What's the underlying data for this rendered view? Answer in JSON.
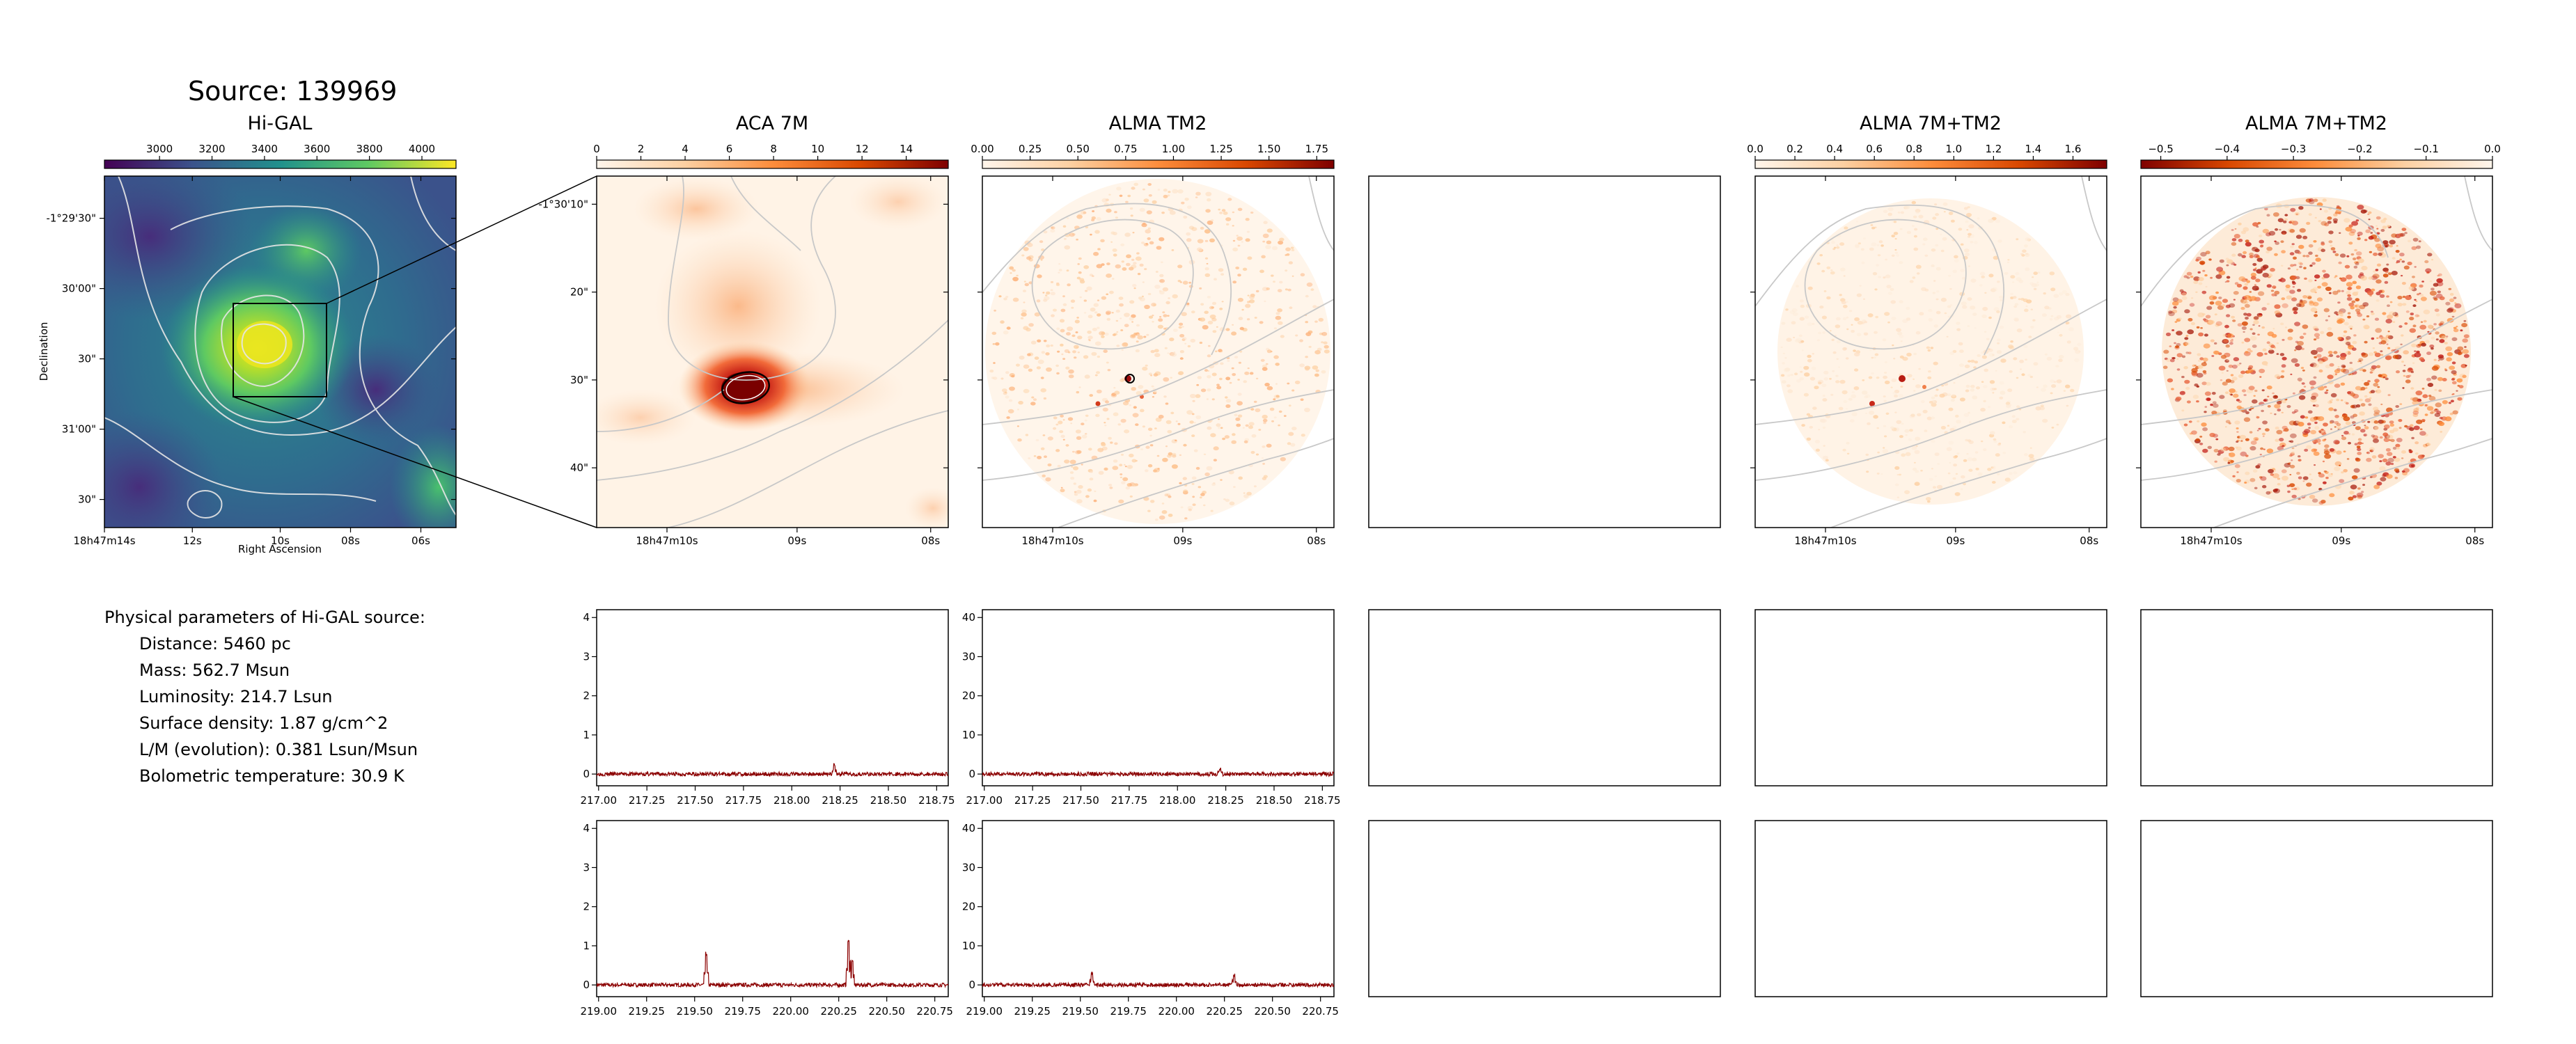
{
  "source_title": "Source: 139969",
  "params": {
    "heading": "Physical parameters of Hi-GAL source:",
    "lines": [
      "Distance: 5460 pc",
      "Mass: 562.7 Msun",
      "Luminosity: 214.7 Lsun",
      "Surface density: 1.87 g/cm^2",
      "L/M (evolution): 0.381 Lsun/Msun",
      "Bolometric temperature: 30.9 K"
    ]
  },
  "colors": {
    "viridis": [
      "#440154",
      "#3b528b",
      "#21918c",
      "#5ec962",
      "#fde725"
    ],
    "orrd": [
      "#fff5eb",
      "#fdd0a2",
      "#fd8d3c",
      "#d94801",
      "#7f0000"
    ],
    "orrd_reversed": [
      "#7f0000",
      "#d94801",
      "#fd8d3c",
      "#fdd0a2",
      "#fff5eb"
    ],
    "spectrum": "#8b0000",
    "contour_light": "#e6e6e6",
    "contour_gray": "#b4b4b4"
  },
  "chart_data": [
    {
      "type": "heatmap",
      "title": "Hi-GAL",
      "colormap": "viridis",
      "colorbar_ticks": [
        "3000",
        "3200",
        "3400",
        "3600",
        "3800",
        "4000"
      ],
      "colorbar_range": [
        2790,
        4130
      ],
      "xlabel": "Right Ascension",
      "ylabel": "Declination",
      "x_ticks": [
        "18h47m14s",
        "12s",
        "10s",
        "08s",
        "06s"
      ],
      "y_ticks": [
        "-1°29'30\"",
        "30'00\"",
        "30\"",
        "31'00\"",
        "30\""
      ]
    },
    {
      "type": "heatmap",
      "title": "ACA 7M",
      "colormap": "orrd",
      "colorbar_ticks": [
        "0",
        "2",
        "4",
        "6",
        "8",
        "10",
        "12",
        "14"
      ],
      "colorbar_range": [
        0,
        15.9
      ],
      "x_ticks": [
        "18h47m10s",
        "09s",
        "08s"
      ],
      "y_ticks": [
        "-1°30'10\"",
        "20\"",
        "30\"",
        "40\""
      ]
    },
    {
      "type": "heatmap",
      "title": "ALMA TM2",
      "colormap": "orrd",
      "colorbar_ticks": [
        "0.00",
        "0.25",
        "0.50",
        "0.75",
        "1.00",
        "1.25",
        "1.50",
        "1.75"
      ],
      "colorbar_range": [
        0,
        1.84
      ],
      "x_ticks": [
        "18h47m10s",
        "09s",
        "08s"
      ]
    },
    {
      "type": "heatmap",
      "title": "ALMA 7M+TM2",
      "colormap": "orrd",
      "colorbar_ticks": [
        "0.0",
        "0.2",
        "0.4",
        "0.6",
        "0.8",
        "1.0",
        "1.2",
        "1.4",
        "1.6"
      ],
      "colorbar_range": [
        0,
        1.77
      ],
      "x_ticks": [
        "18h47m10s",
        "09s",
        "08s"
      ]
    },
    {
      "type": "heatmap",
      "title": "ALMA 7M+TM2",
      "colormap": "orrd_reversed",
      "colorbar_ticks": [
        "−0.5",
        "−0.4",
        "−0.3",
        "−0.2",
        "−0.1",
        "0.0"
      ],
      "colorbar_range": [
        -0.53,
        0
      ],
      "x_ticks": [
        "18h47m10s",
        "09s",
        "08s"
      ]
    },
    {
      "type": "line",
      "x_ticks": [
        "217.00",
        "217.25",
        "217.50",
        "217.75",
        "218.00",
        "218.25",
        "218.50",
        "218.75"
      ],
      "xlim": [
        216.99,
        218.81
      ],
      "y_ticks": [
        "0",
        "1",
        "2",
        "3",
        "4"
      ],
      "ylim": [
        -0.3,
        4.2
      ],
      "peaks": [
        {
          "x": 218.22,
          "y": 0.25
        }
      ]
    },
    {
      "type": "line",
      "x_ticks": [
        "217.00",
        "217.25",
        "217.50",
        "217.75",
        "218.00",
        "218.25",
        "218.50",
        "218.75"
      ],
      "xlim": [
        216.99,
        218.81
      ],
      "y_ticks": [
        "0",
        "10",
        "20",
        "30",
        "40"
      ],
      "ylim": [
        -3,
        42
      ],
      "peaks": [
        {
          "x": 218.22,
          "y": 1.5
        }
      ]
    },
    {
      "type": "line",
      "x_ticks": [
        "219.00",
        "219.25",
        "219.50",
        "219.75",
        "220.00",
        "220.25",
        "220.50",
        "220.75"
      ],
      "xlim": [
        218.99,
        220.82
      ],
      "y_ticks": [
        "0",
        "1",
        "2",
        "3",
        "4"
      ],
      "ylim": [
        -0.3,
        4.2
      ],
      "peaks": [
        {
          "x": 219.56,
          "y": 0.8
        },
        {
          "x": 220.3,
          "y": 1.1
        },
        {
          "x": 220.32,
          "y": 0.6
        }
      ]
    },
    {
      "type": "line",
      "x_ticks": [
        "219.00",
        "219.25",
        "219.50",
        "219.75",
        "220.00",
        "220.25",
        "220.50",
        "220.75"
      ],
      "xlim": [
        218.99,
        220.82
      ],
      "y_ticks": [
        "0",
        "10",
        "20",
        "30",
        "40"
      ],
      "ylim": [
        -3,
        42
      ],
      "peaks": [
        {
          "x": 219.56,
          "y": 3
        },
        {
          "x": 220.3,
          "y": 2.5
        }
      ]
    }
  ]
}
